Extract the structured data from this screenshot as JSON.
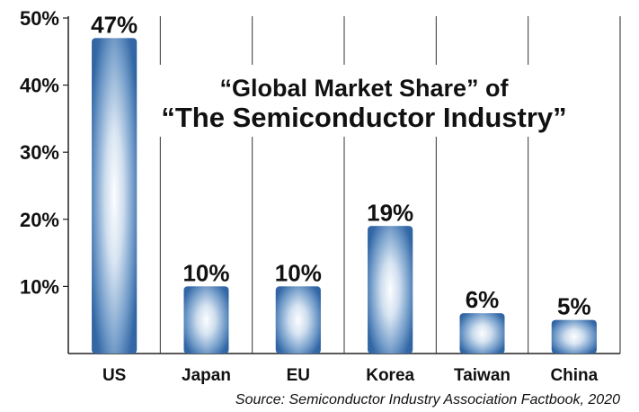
{
  "chart_data": {
    "type": "bar",
    "title_line1": "“Global Market Share” of",
    "title_line2": "“The Semiconductor Industry”",
    "categories": [
      "US",
      "Japan",
      "EU",
      "Korea",
      "Taiwan",
      "China"
    ],
    "values": [
      47,
      10,
      10,
      19,
      6,
      5
    ],
    "data_labels": [
      "47%",
      "10%",
      "10%",
      "19%",
      "6%",
      "5%"
    ],
    "y_ticks": [
      10,
      20,
      30,
      40,
      50
    ],
    "y_tick_labels": [
      "10%",
      "20%",
      "30%",
      "40%",
      "50%"
    ],
    "ylim": [
      0,
      50
    ],
    "xlabel": "",
    "ylabel": "",
    "grid": "vertical separators between categories",
    "bar_color_edge": "#2f64a3",
    "bar_color_center": "#ffffff",
    "source": "Source: Semiconductor Industry Association Factbook, 2020"
  }
}
